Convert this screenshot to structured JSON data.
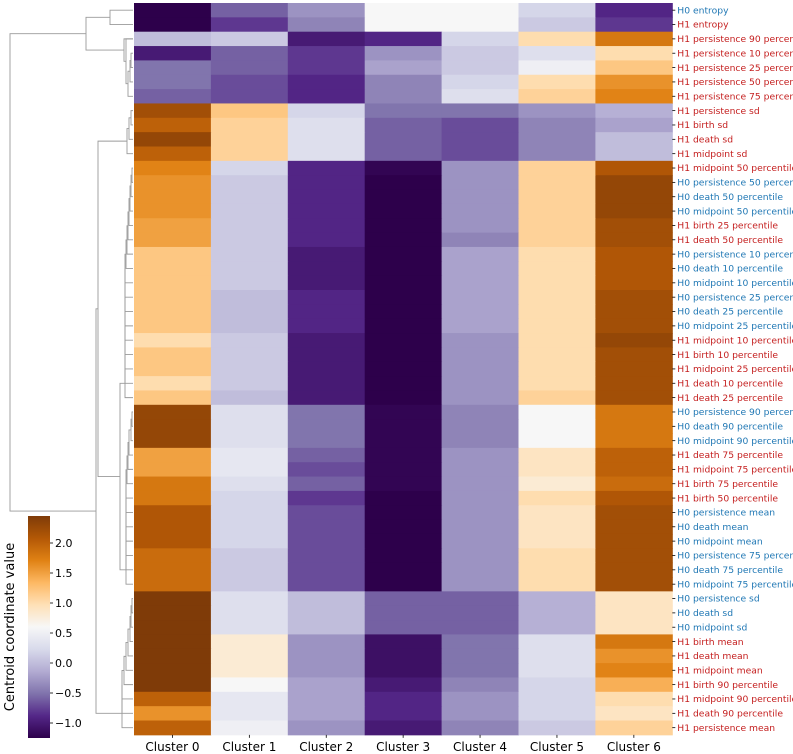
{
  "chart_data": {
    "type": "heatmap",
    "title": "",
    "colormap": "PuOr_r",
    "colorbar": {
      "label": "Centroid coordinate value",
      "range": [
        -1.25,
        2.45
      ],
      "ticks": [
        "2.0",
        "1.5",
        "1.0",
        "0.5",
        "0.0",
        "−0.5",
        "−1.0"
      ],
      "tick_values": [
        2.0,
        1.5,
        1.0,
        0.5,
        0.0,
        -0.5,
        -1.0
      ]
    },
    "columns": [
      "Cluster 0",
      "Cluster 1",
      "Cluster 2",
      "Cluster 3",
      "Cluster 4",
      "Cluster 5",
      "Cluster 6"
    ],
    "label_colors": {
      "H0": "#1f77b4",
      "H1": "#c41e1e"
    },
    "rows": [
      {
        "label": "H0 entropy",
        "group": "H0",
        "values": [
          -1.3,
          -0.6,
          -0.3,
          0.6,
          0.6,
          0.2,
          -0.9
        ]
      },
      {
        "label": "H1 entropy",
        "group": "H1",
        "values": [
          -1.3,
          -0.8,
          -0.4,
          0.6,
          0.6,
          0.1,
          -0.8
        ]
      },
      {
        "label": "H1 persistence 90 percentile",
        "group": "H1",
        "values": [
          0.0,
          0.1,
          -1.0,
          -0.9,
          0.2,
          1.0,
          1.8
        ]
      },
      {
        "label": "H1 persistence 10 percentile",
        "group": "H1",
        "values": [
          -1.0,
          -0.6,
          -0.8,
          -0.3,
          0.1,
          0.3,
          1.0
        ]
      },
      {
        "label": "H1 persistence 25 percentile",
        "group": "H1",
        "values": [
          -0.5,
          -0.6,
          -0.8,
          -0.2,
          0.1,
          0.5,
          1.2
        ]
      },
      {
        "label": "H1 persistence 50 percentile",
        "group": "H1",
        "values": [
          -0.5,
          -0.7,
          -0.9,
          -0.4,
          0.2,
          1.0,
          1.6
        ]
      },
      {
        "label": "H1 persistence 75 percentile",
        "group": "H1",
        "values": [
          -0.6,
          -0.7,
          -0.9,
          -0.4,
          0.3,
          1.1,
          1.7
        ]
      },
      {
        "label": "H1 persistence sd",
        "group": "H1",
        "values": [
          2.2,
          1.2,
          0.2,
          -0.5,
          -0.5,
          -0.3,
          -0.1
        ]
      },
      {
        "label": "H1 birth sd",
        "group": "H1",
        "values": [
          2.0,
          1.1,
          0.3,
          -0.6,
          -0.7,
          -0.4,
          -0.2
        ]
      },
      {
        "label": "H1 death sd",
        "group": "H1",
        "values": [
          2.3,
          1.1,
          0.3,
          -0.6,
          -0.7,
          -0.4,
          0.0
        ]
      },
      {
        "label": "H1 midpoint sd",
        "group": "H1",
        "values": [
          2.0,
          1.1,
          0.3,
          -0.6,
          -0.7,
          -0.4,
          0.0
        ]
      },
      {
        "label": "H1 midpoint 50 percentile",
        "group": "H1",
        "values": [
          1.7,
          0.2,
          -0.9,
          -1.2,
          -0.3,
          1.1,
          2.1
        ]
      },
      {
        "label": "H0 persistence 50 percentile",
        "group": "H0",
        "values": [
          1.6,
          0.1,
          -0.9,
          -1.3,
          -0.3,
          1.1,
          2.3
        ]
      },
      {
        "label": "H0 death 50 percentile",
        "group": "H0",
        "values": [
          1.6,
          0.1,
          -0.9,
          -1.3,
          -0.3,
          1.1,
          2.3
        ]
      },
      {
        "label": "H0 midpoint 50 percentile",
        "group": "H0",
        "values": [
          1.6,
          0.1,
          -0.9,
          -1.3,
          -0.3,
          1.1,
          2.3
        ]
      },
      {
        "label": "H1 birth 25 percentile",
        "group": "H1",
        "values": [
          1.5,
          0.1,
          -0.9,
          -1.3,
          -0.3,
          1.1,
          2.2
        ]
      },
      {
        "label": "H1 death 50 percentile",
        "group": "H1",
        "values": [
          1.5,
          0.1,
          -0.9,
          -1.3,
          -0.4,
          1.1,
          2.2
        ]
      },
      {
        "label": "H0 persistence 10 percentile",
        "group": "H0",
        "values": [
          1.2,
          0.1,
          -1.0,
          -1.3,
          -0.2,
          1.0,
          2.1
        ]
      },
      {
        "label": "H0 death 10 percentile",
        "group": "H0",
        "values": [
          1.2,
          0.1,
          -1.0,
          -1.3,
          -0.2,
          1.0,
          2.1
        ]
      },
      {
        "label": "H0 midpoint 10 percentile",
        "group": "H0",
        "values": [
          1.2,
          0.1,
          -1.0,
          -1.3,
          -0.2,
          1.0,
          2.1
        ]
      },
      {
        "label": "H0 persistence 25 percentile",
        "group": "H0",
        "values": [
          1.2,
          0.0,
          -0.9,
          -1.3,
          -0.2,
          1.0,
          2.2
        ]
      },
      {
        "label": "H0 death 25 percentile",
        "group": "H0",
        "values": [
          1.2,
          0.0,
          -0.9,
          -1.3,
          -0.2,
          1.0,
          2.2
        ]
      },
      {
        "label": "H0 midpoint 25 percentile",
        "group": "H0",
        "values": [
          1.2,
          0.0,
          -0.9,
          -1.3,
          -0.2,
          1.0,
          2.2
        ]
      },
      {
        "label": "H1 midpoint 10 percentile",
        "group": "H1",
        "values": [
          1.0,
          0.1,
          -1.0,
          -1.3,
          -0.3,
          1.0,
          2.3
        ]
      },
      {
        "label": "H1 birth 10 percentile",
        "group": "H1",
        "values": [
          1.2,
          0.1,
          -1.0,
          -1.3,
          -0.3,
          1.0,
          2.2
        ]
      },
      {
        "label": "H1 midpoint 25 percentile",
        "group": "H1",
        "values": [
          1.2,
          0.1,
          -1.0,
          -1.3,
          -0.3,
          1.0,
          2.2
        ]
      },
      {
        "label": "H1 death 10 percentile",
        "group": "H1",
        "values": [
          1.0,
          0.1,
          -1.0,
          -1.3,
          -0.3,
          1.0,
          2.2
        ]
      },
      {
        "label": "H1 death 25 percentile",
        "group": "H1",
        "values": [
          1.2,
          0.0,
          -1.0,
          -1.3,
          -0.3,
          1.1,
          2.2
        ]
      },
      {
        "label": "H0 persistence 90 percentile",
        "group": "H0",
        "values": [
          2.3,
          0.3,
          -0.5,
          -1.2,
          -0.4,
          0.6,
          1.8
        ]
      },
      {
        "label": "H0 death 90 percentile",
        "group": "H0",
        "values": [
          2.3,
          0.3,
          -0.5,
          -1.2,
          -0.4,
          0.6,
          1.8
        ]
      },
      {
        "label": "H0 midpoint 90 percentile",
        "group": "H0",
        "values": [
          2.3,
          0.3,
          -0.5,
          -1.2,
          -0.4,
          0.6,
          1.8
        ]
      },
      {
        "label": "H1 death 75 percentile",
        "group": "H1",
        "values": [
          1.5,
          0.4,
          -0.6,
          -1.2,
          -0.3,
          0.9,
          2.0
        ]
      },
      {
        "label": "H1 midpoint 75 percentile",
        "group": "H1",
        "values": [
          1.5,
          0.4,
          -0.7,
          -1.2,
          -0.3,
          0.9,
          2.0
        ]
      },
      {
        "label": "H1 birth 75 percentile",
        "group": "H1",
        "values": [
          1.8,
          0.3,
          -0.6,
          -1.2,
          -0.3,
          0.8,
          1.9
        ]
      },
      {
        "label": "H1 birth 50 percentile",
        "group": "H1",
        "values": [
          1.8,
          0.2,
          -0.8,
          -1.3,
          -0.3,
          1.0,
          2.1
        ]
      },
      {
        "label": "H0 persistence mean",
        "group": "H0",
        "values": [
          2.1,
          0.2,
          -0.7,
          -1.3,
          -0.3,
          0.9,
          2.2
        ]
      },
      {
        "label": "H0 death mean",
        "group": "H0",
        "values": [
          2.1,
          0.2,
          -0.7,
          -1.3,
          -0.3,
          0.9,
          2.2
        ]
      },
      {
        "label": "H0 midpoint mean",
        "group": "H0",
        "values": [
          2.1,
          0.2,
          -0.7,
          -1.3,
          -0.3,
          0.9,
          2.2
        ]
      },
      {
        "label": "H0 persistence 75 percentile",
        "group": "H0",
        "values": [
          1.9,
          0.1,
          -0.7,
          -1.3,
          -0.3,
          1.0,
          2.2
        ]
      },
      {
        "label": "H0 death 75 percentile",
        "group": "H0",
        "values": [
          1.9,
          0.1,
          -0.7,
          -1.3,
          -0.3,
          1.0,
          2.2
        ]
      },
      {
        "label": "H0 midpoint 75 percentile",
        "group": "H0",
        "values": [
          1.9,
          0.1,
          -0.7,
          -1.3,
          -0.3,
          1.0,
          2.2
        ]
      },
      {
        "label": "H0 persistence sd",
        "group": "H0",
        "values": [
          2.5,
          0.3,
          0.0,
          -0.6,
          -0.6,
          -0.1,
          0.9
        ]
      },
      {
        "label": "H0 death sd",
        "group": "H0",
        "values": [
          2.5,
          0.3,
          0.0,
          -0.6,
          -0.6,
          -0.1,
          0.9
        ]
      },
      {
        "label": "H0 midpoint sd",
        "group": "H0",
        "values": [
          2.5,
          0.3,
          0.0,
          -0.6,
          -0.6,
          -0.1,
          0.9
        ]
      },
      {
        "label": "H1 birth mean",
        "group": "H1",
        "values": [
          2.5,
          0.8,
          -0.3,
          -1.1,
          -0.5,
          0.3,
          1.8
        ]
      },
      {
        "label": "H1 death mean",
        "group": "H1",
        "values": [
          2.5,
          0.8,
          -0.3,
          -1.1,
          -0.5,
          0.3,
          1.6
        ]
      },
      {
        "label": "H1 midpoint mean",
        "group": "H1",
        "values": [
          2.5,
          0.8,
          -0.3,
          -1.1,
          -0.5,
          0.3,
          1.7
        ]
      },
      {
        "label": "H1 birth 90 percentile",
        "group": "H1",
        "values": [
          2.5,
          0.6,
          -0.2,
          -1.0,
          -0.4,
          0.2,
          1.4
        ]
      },
      {
        "label": "H1 midpoint 90 percentile",
        "group": "H1",
        "values": [
          2.0,
          0.4,
          -0.2,
          -0.9,
          -0.3,
          0.2,
          1.0
        ]
      },
      {
        "label": "H1 death 90 percentile",
        "group": "H1",
        "values": [
          1.6,
          0.4,
          -0.2,
          -0.9,
          -0.3,
          0.2,
          0.9
        ]
      },
      {
        "label": "H1 persistence mean",
        "group": "H1",
        "values": [
          2.0,
          0.5,
          -0.3,
          -1.0,
          -0.4,
          0.1,
          1.1
        ]
      }
    ]
  }
}
